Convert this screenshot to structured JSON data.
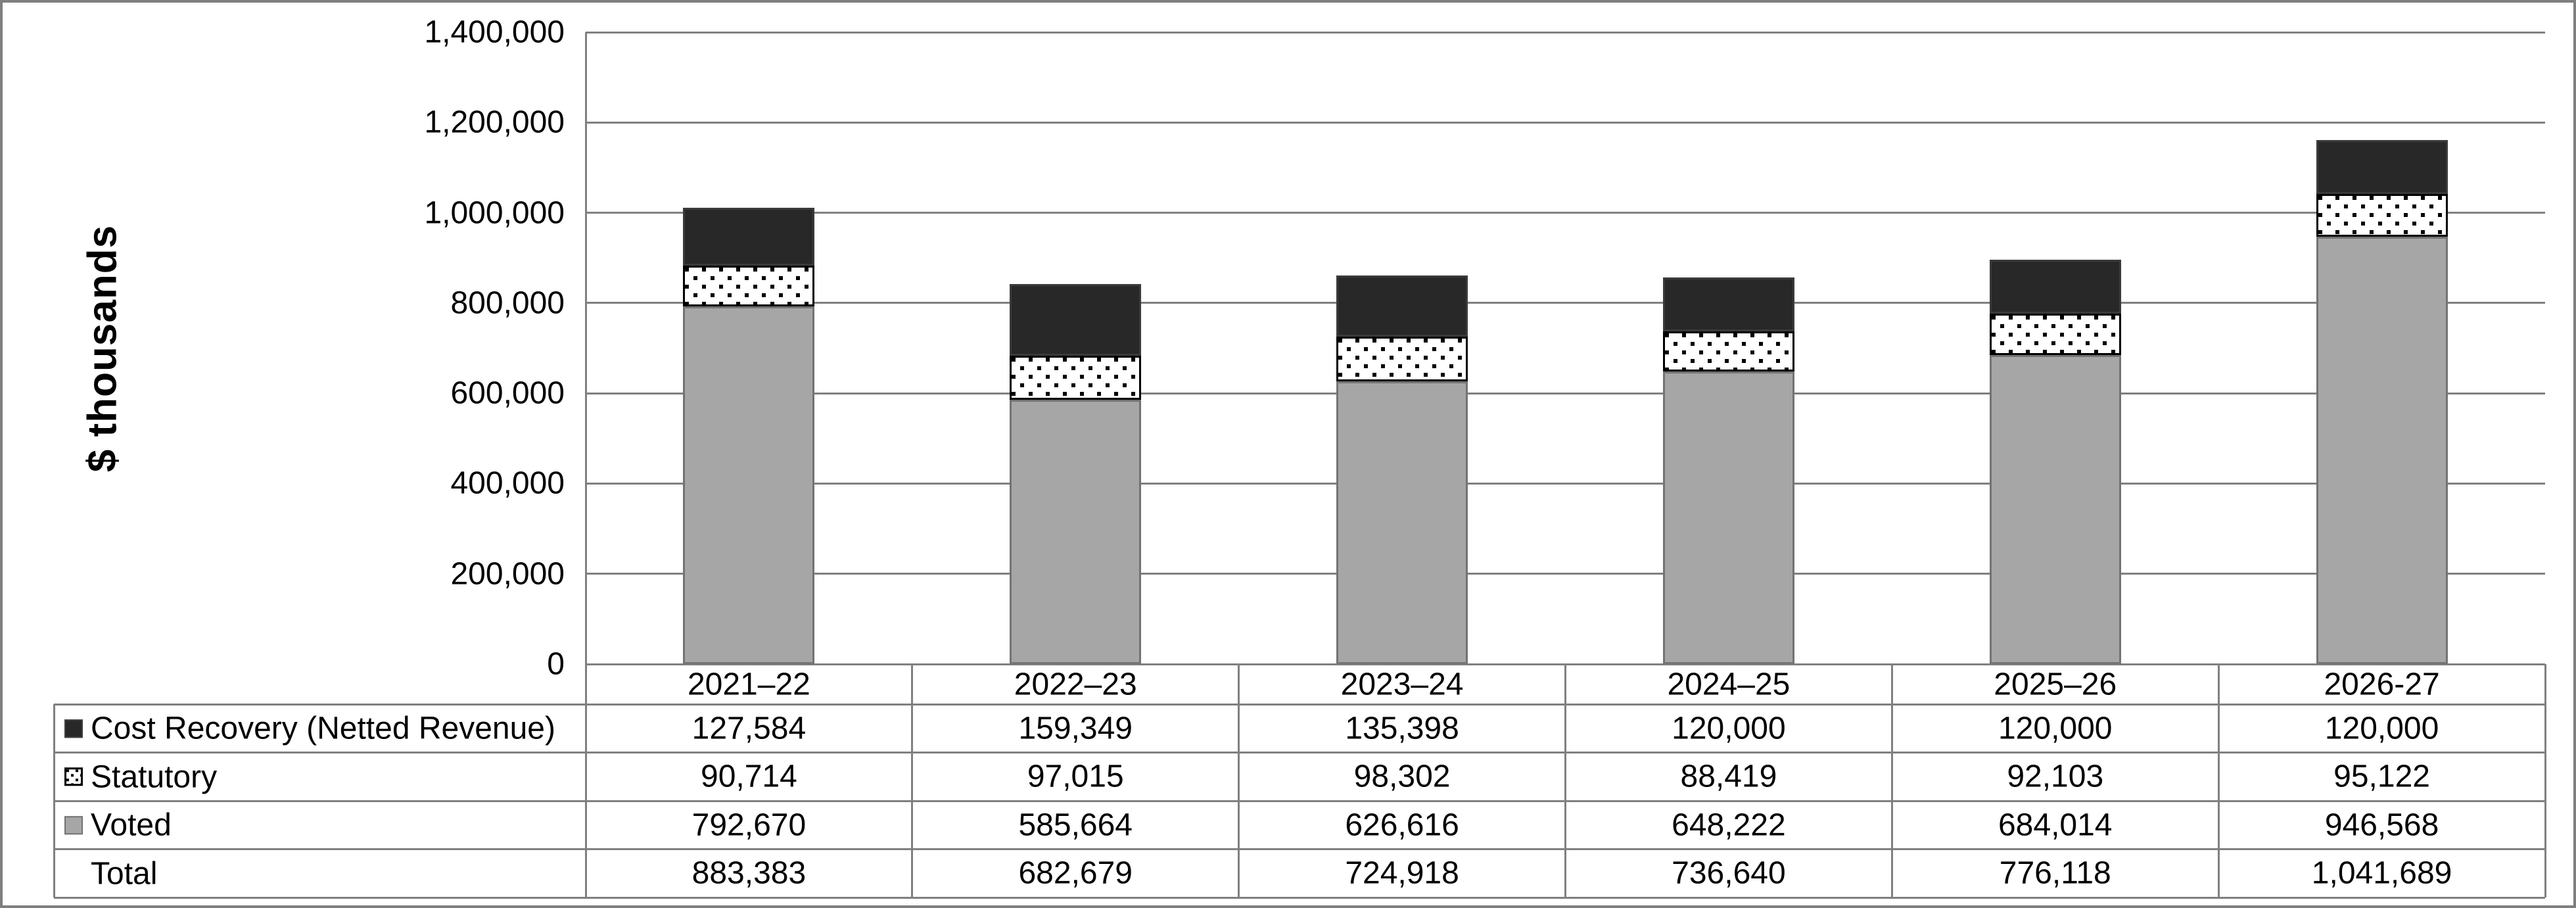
{
  "y_axis_title": "$ thousands",
  "colors": {
    "voted_fill": "#a6a6a6",
    "voted_border": "#737373",
    "cost_recovery_fill": "#282828",
    "statutory_pattern": "black-dots-on-white",
    "gridline": "#808080",
    "figure_border": "#7f7f7f",
    "text": "#000000"
  },
  "chart_data": {
    "type": "bar",
    "stacked": true,
    "stack_order": "bottom-to-top",
    "categories": [
      "2021–22",
      "2022–23",
      "2023–24",
      "2024–25",
      "2025–26",
      "2026-27"
    ],
    "series": [
      {
        "name": "Voted",
        "style": "solid-gray",
        "values": [
          792670,
          585664,
          626616,
          648222,
          684014,
          946568
        ]
      },
      {
        "name": "Statutory",
        "style": "dotted",
        "values": [
          90714,
          97015,
          98302,
          88419,
          92103,
          95122
        ]
      },
      {
        "name": "Cost Recovery (Netted Revenue)",
        "style": "solid-dark",
        "values": [
          127584,
          159349,
          135398,
          120000,
          120000,
          120000
        ]
      }
    ],
    "totals": [
      883383,
      682679,
      724918,
      736640,
      776118,
      1041689
    ],
    "title": "",
    "xlabel": "",
    "ylabel": "$ thousands",
    "ylim": [
      0,
      1400000
    ],
    "ytick_step": 200000,
    "yticks": [
      "0",
      "200,000",
      "400,000",
      "600,000",
      "800,000",
      "1,000,000",
      "1,200,000",
      "1,400,000"
    ],
    "grid": true,
    "legend_position": "table-left-column"
  },
  "table": {
    "header": [
      "2021–22",
      "2022–23",
      "2023–24",
      "2024–25",
      "2025–26",
      "2026-27"
    ],
    "rows": [
      {
        "label": "Cost Recovery (Netted Revenue)",
        "swatch": "dark",
        "values": [
          "127,584",
          "159,349",
          "135,398",
          "120,000",
          "120,000",
          "120,000"
        ]
      },
      {
        "label": "Statutory",
        "swatch": "dotted",
        "values": [
          "90,714",
          "97,015",
          "98,302",
          "88,419",
          "92,103",
          "95,122"
        ]
      },
      {
        "label": "Voted",
        "swatch": "gray",
        "values": [
          "792,670",
          "585,664",
          "626,616",
          "648,222",
          "684,014",
          "946,568"
        ]
      },
      {
        "label": "Total",
        "swatch": "none",
        "values": [
          "883,383",
          "682,679",
          "724,918",
          "736,640",
          "776,118",
          "1,041,689"
        ]
      }
    ]
  }
}
